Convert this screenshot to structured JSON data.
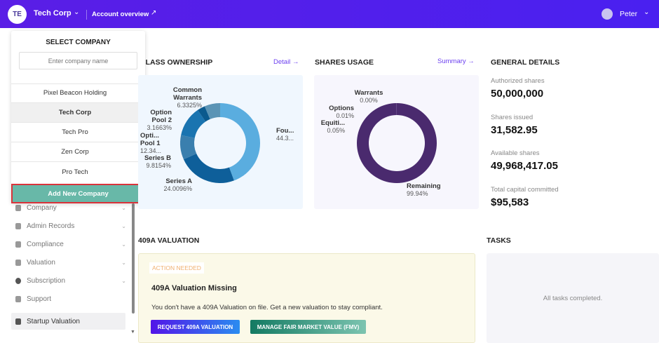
{
  "header": {
    "avatar_initials": "TE",
    "company": "Tech Corp",
    "account_overview": "Account overview",
    "user": "Peter"
  },
  "company_dropdown": {
    "title": "SELECT COMPANY",
    "search_placeholder": "Enter company name",
    "companies": [
      "Pixel Beacon Holding",
      "Tech Corp",
      "Tech Pro",
      "Zen Corp",
      "Pro Tech"
    ],
    "selected": "Tech Corp",
    "add_button": "Add New Company"
  },
  "sidebar": {
    "items": [
      {
        "label": "Company"
      },
      {
        "label": "Admin Records"
      },
      {
        "label": "Compliance"
      },
      {
        "label": "Valuation"
      },
      {
        "label": "Subscription"
      },
      {
        "label": "Support"
      },
      {
        "label": "Startup Valuation"
      }
    ]
  },
  "class_ownership": {
    "title": "CLASS OWNERSHIP",
    "link": "Detail"
  },
  "shares_usage": {
    "title": "SHARES USAGE",
    "link": "Summary"
  },
  "chart_data": [
    {
      "type": "pie",
      "title": "CLASS OWNERSHIP",
      "categories": [
        "Founders",
        "Series A",
        "Series B",
        "Option Pool 1",
        "Option Pool 2",
        "Common Warrants"
      ],
      "display_labels": [
        "Fou...",
        "Series A",
        "Series B",
        "Opti... Pool 1",
        "Option Pool 2",
        "Common Warrants"
      ],
      "display_values": [
        "44.3...",
        "24.0096%",
        "9.8154%",
        "12.34...",
        "3.1663%",
        "6.3325%"
      ],
      "values": [
        44.33,
        24.0096,
        9.8154,
        12.34,
        3.1663,
        6.3325
      ],
      "colors": [
        "#5aaddf",
        "#0e5f9a",
        "#3a7fae",
        "#1a74b0",
        "#0b5a8e",
        "#5b94b5"
      ]
    },
    {
      "type": "pie",
      "title": "SHARES USAGE",
      "categories": [
        "Remaining",
        "Equity",
        "Options",
        "Warrants"
      ],
      "display_labels": [
        "Remaining",
        "Equiti...",
        "Options",
        "Warrants"
      ],
      "display_values": [
        "99.94%",
        "0.05%",
        "0.01%",
        "0.00%"
      ],
      "values": [
        99.94,
        0.05,
        0.01,
        0.0
      ],
      "colors": [
        "#4a2a6e",
        "#6a4a9e",
        "#8a6abe",
        "#aa8ade"
      ]
    }
  ],
  "general": {
    "title": "GENERAL DETAILS",
    "items": [
      {
        "label": "Authorized shares",
        "value": "50,000,000"
      },
      {
        "label": "Shares issued",
        "value": "31,582.95"
      },
      {
        "label": "Available shares",
        "value": "49,968,417.05"
      },
      {
        "label": "Total capital committed",
        "value": "$95,583"
      }
    ]
  },
  "valuation": {
    "title": "409A VALUATION",
    "badge": "ACTION NEEDED",
    "heading": "409A Valuation Missing",
    "text": "You don't have a 409A Valuation on file. Get a new valuation to stay compliant.",
    "btn_request": "REQUEST 409A VALUATION",
    "btn_fmv": "MANAGE FAIR MARKET VALUE (FMV)"
  },
  "tasks": {
    "title": "TASKS",
    "empty": "All tasks completed."
  }
}
